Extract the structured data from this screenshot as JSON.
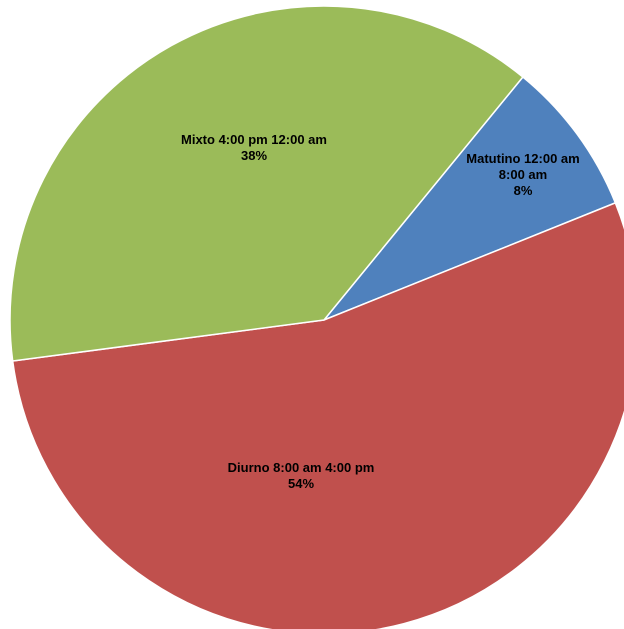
{
  "chart_data": {
    "type": "pie",
    "slices": [
      {
        "label": "Matutino 12:00 am 8:00 am",
        "label_lines": [
          "Matutino 12:00 am",
          "8:00 am"
        ],
        "percent_label": "8%",
        "value": 8,
        "color": "#4f81bd"
      },
      {
        "label": "Diurno 8:00 am 4:00 pm",
        "label_lines": [
          "Diurno 8:00 am 4:00 pm"
        ],
        "percent_label": "54%",
        "value": 54,
        "color": "#c0504d"
      },
      {
        "label": "Mixto 4:00 pm 12:00 am",
        "label_lines": [
          "Mixto 4:00 pm 12:00 am"
        ],
        "percent_label": "38%",
        "value": 38,
        "color": "#9bbb59"
      }
    ],
    "start_angle_deg": 39.3,
    "direction": "clockwise",
    "legend": "none"
  }
}
